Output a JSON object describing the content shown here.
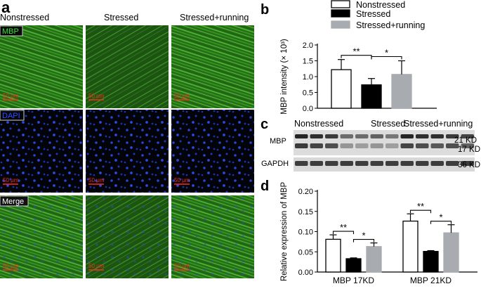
{
  "panel_labels": {
    "a": "a",
    "b": "b",
    "c": "c",
    "d": "d"
  },
  "panel_a": {
    "columns": [
      "Nonstressed",
      "Stressed",
      "Stressed+running"
    ],
    "rows": [
      "MBP",
      "DAPI",
      "Merge"
    ],
    "scale_bar": "50 μm",
    "colors": {
      "mbp_green": "#2f9a1e",
      "dapi_blue": "#1f3fd0",
      "scale_red": "#ff2a1a"
    }
  },
  "panel_c": {
    "groups": [
      "Nonstressed",
      "Stressed",
      "Stressed+running"
    ],
    "row_labels": [
      "MBP",
      "GAPDH"
    ],
    "size_labels": [
      "21 KD",
      "17 KD",
      "36 KD"
    ]
  },
  "legend": [
    "Nonstressed",
    "Stressed",
    "Stressed+running"
  ],
  "series_colors": [
    "#ffffff",
    "#000000",
    "#a8acb0"
  ],
  "chart_data": [
    {
      "type": "bar",
      "categories": [
        ""
      ],
      "series": [
        {
          "name": "Nonstressed",
          "values": [
            1.22
          ],
          "error": [
            0.32
          ]
        },
        {
          "name": "Stressed",
          "values": [
            0.74
          ],
          "error": [
            0.2
          ]
        },
        {
          "name": "Stressed+running",
          "values": [
            1.07
          ],
          "error": [
            0.43
          ]
        }
      ],
      "ylabel": "MBP intensity (× 10³)",
      "yticks": [
        "0.0",
        "0.5",
        "1.0",
        "1.5",
        "2.0"
      ],
      "ylim": [
        0,
        2.0
      ],
      "significance": [
        {
          "between": [
            "Nonstressed",
            "Stressed"
          ],
          "label": "**"
        },
        {
          "between": [
            "Stressed",
            "Stressed+running"
          ],
          "label": "*"
        }
      ],
      "legend": "top"
    },
    {
      "type": "bar",
      "categories": [
        "MBP  17KD",
        "MBP  21KD"
      ],
      "series": [
        {
          "name": "Nonstressed",
          "values": [
            0.081,
            0.126
          ],
          "error": [
            0.011,
            0.018
          ]
        },
        {
          "name": "Stressed",
          "values": [
            0.033,
            0.051
          ],
          "error": [
            0.002,
            0.002
          ]
        },
        {
          "name": "Stressed+running",
          "values": [
            0.063,
            0.097
          ],
          "error": [
            0.009,
            0.02
          ]
        }
      ],
      "ylabel": "Relative expression of MBP",
      "yticks": [
        "0.00",
        "0.05",
        "0.10",
        "0.15",
        "0.20"
      ],
      "ylim": [
        0,
        0.2
      ],
      "significance": [
        {
          "category": "MBP  17KD",
          "between": [
            "Nonstressed",
            "Stressed"
          ],
          "label": "**"
        },
        {
          "category": "MBP  17KD",
          "between": [
            "Stressed",
            "Stressed+running"
          ],
          "label": "*"
        },
        {
          "category": "MBP  21KD",
          "between": [
            "Nonstressed",
            "Stressed"
          ],
          "label": "**"
        },
        {
          "category": "MBP  21KD",
          "between": [
            "Stressed",
            "Stressed+running"
          ],
          "label": "*"
        }
      ]
    }
  ]
}
